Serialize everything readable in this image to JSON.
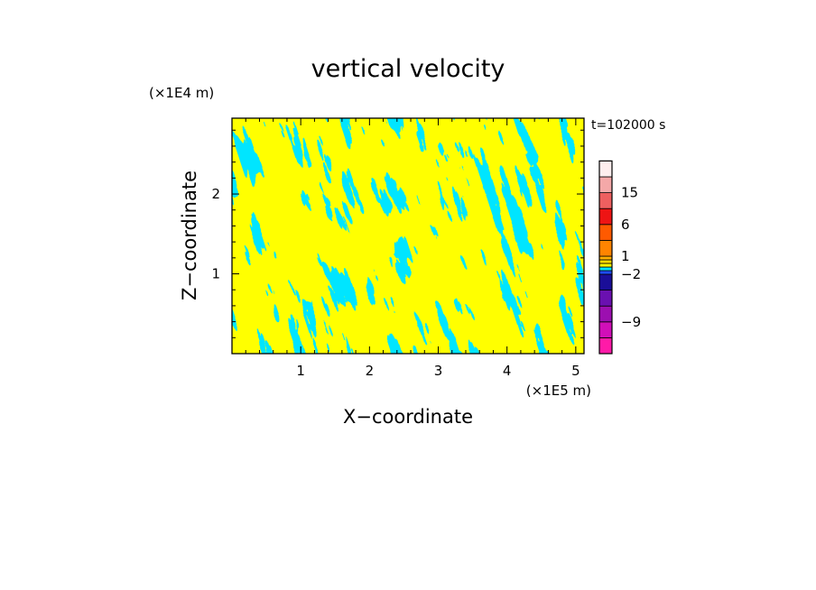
{
  "chart_data": {
    "type": "heatmap",
    "title": "vertical velocity",
    "xlabel": "X−coordinate",
    "ylabel": "Z−coordinate",
    "x_unit": "(×1E5 m)",
    "y_unit": "(×1E4 m)",
    "time_label": "t=102000 s",
    "xlim": [
      0,
      5.12
    ],
    "ylim": [
      0,
      2.95
    ],
    "x_ticks": [
      {
        "value": 1,
        "label": "1"
      },
      {
        "value": 2,
        "label": "2"
      },
      {
        "value": 3,
        "label": "3"
      },
      {
        "value": 4,
        "label": "4"
      },
      {
        "value": 5,
        "label": "5"
      }
    ],
    "y_ticks": [
      {
        "value": 1,
        "label": "1"
      },
      {
        "value": 2,
        "label": "2"
      }
    ],
    "field_colors": {
      "positive": "#ffff00",
      "negative": "#00e5ff"
    },
    "colorbar": {
      "levels": [
        {
          "color": "#ff1aa8"
        },
        {
          "color": "#d10fb8"
        },
        {
          "color": "#9c0fb0"
        },
        {
          "color": "#6a10b0"
        },
        {
          "color": "#1a0e98"
        },
        {
          "color": "#1e4bff"
        },
        {
          "color": "#00e5ff"
        },
        {
          "color": "#ffff00"
        },
        {
          "color": "#ffd800"
        },
        {
          "color": "#ffb000"
        },
        {
          "color": "#ff8400"
        },
        {
          "color": "#ff5a00"
        },
        {
          "color": "#ee1414"
        },
        {
          "color": "#ee6060"
        },
        {
          "color": "#f4a8a8"
        },
        {
          "color": "#fdeeee"
        }
      ],
      "labels": [
        "−9",
        "−2",
        "1",
        "6",
        "15"
      ]
    }
  }
}
